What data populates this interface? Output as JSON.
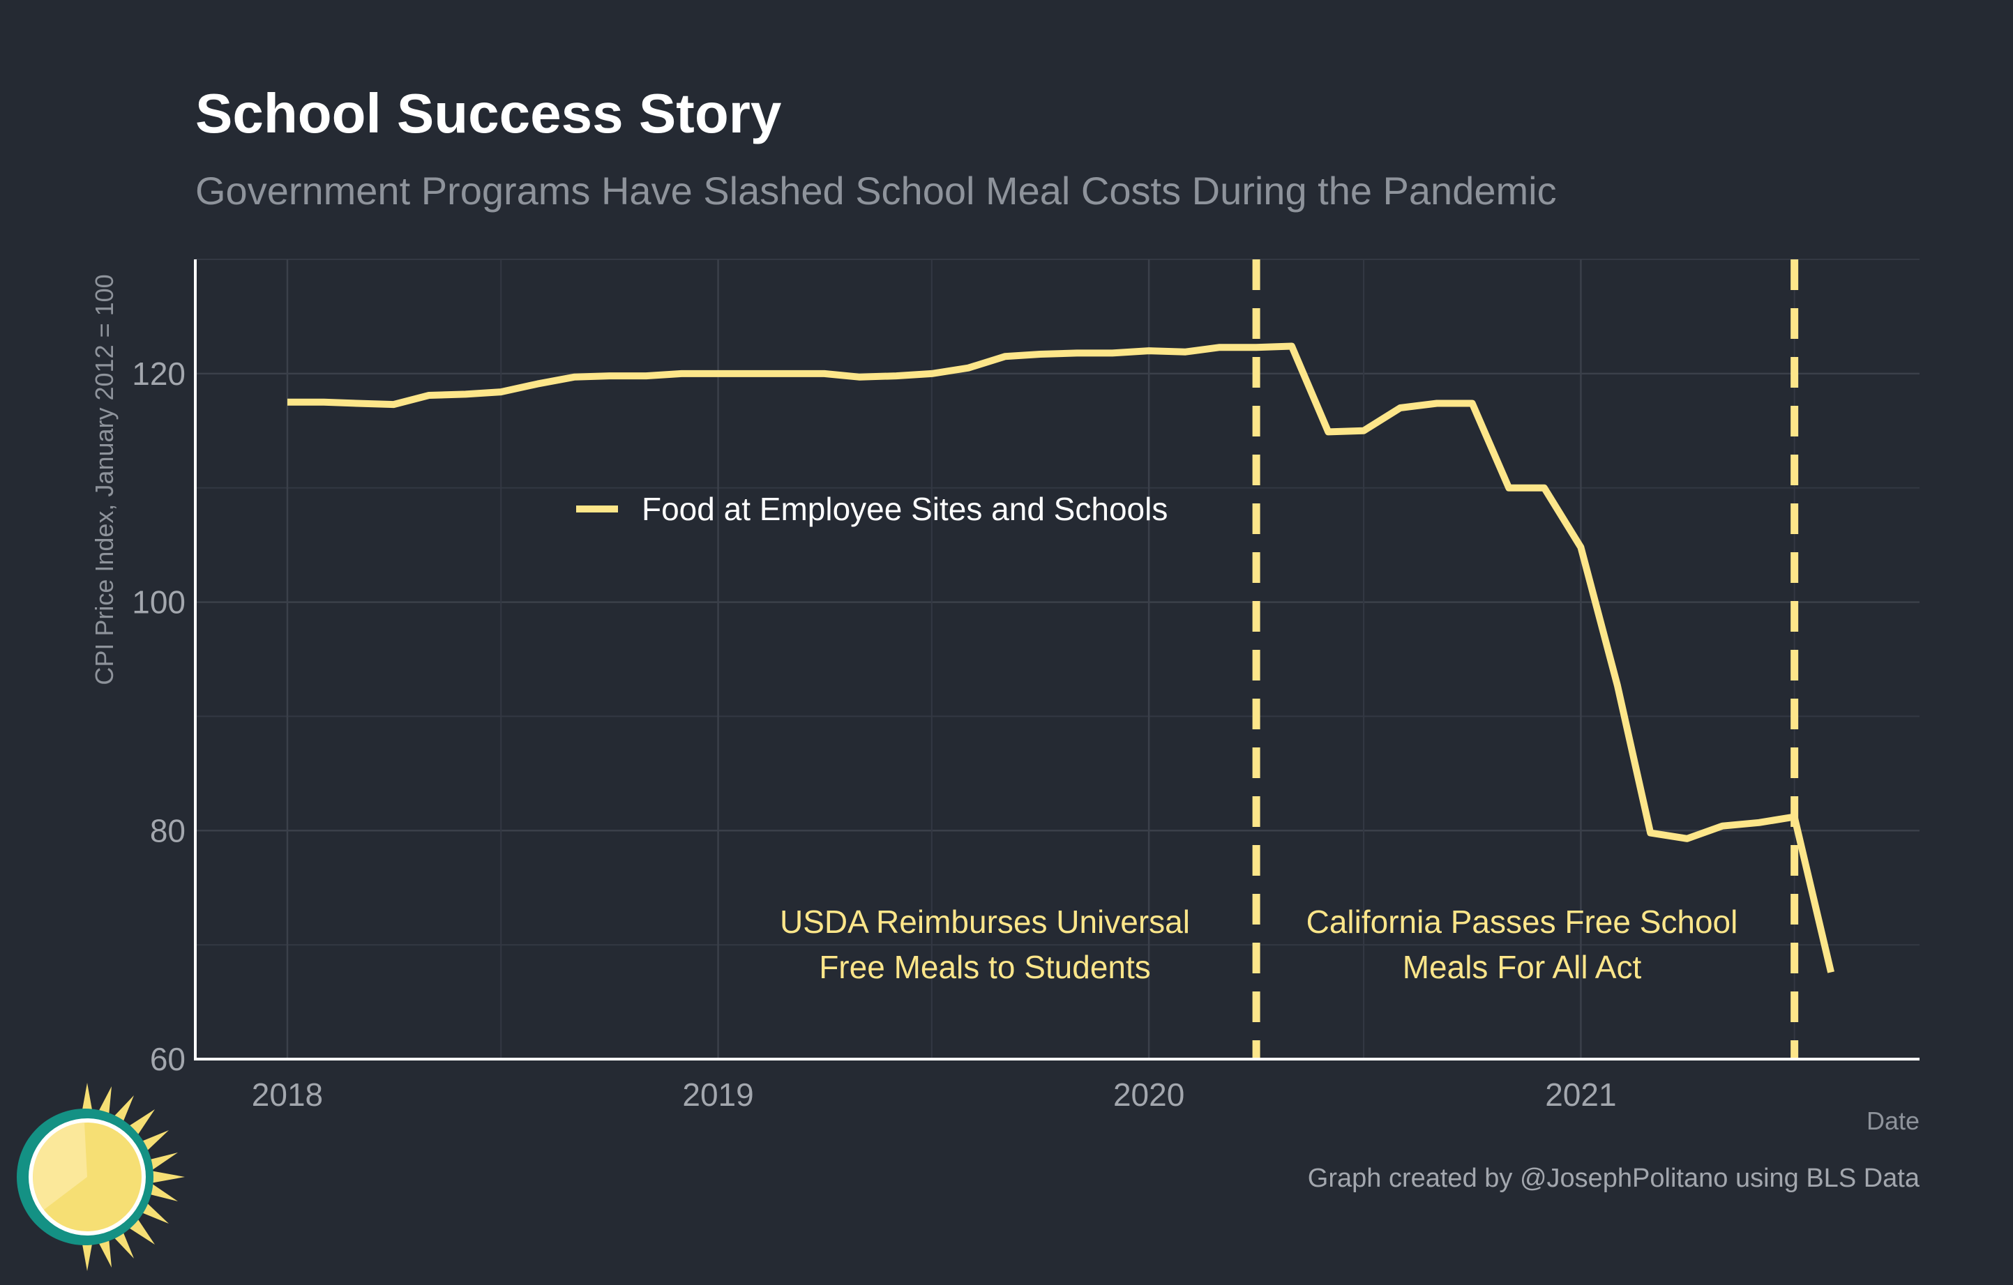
{
  "chart_data": {
    "type": "line",
    "title": "School Success Story",
    "subtitle": "Government Programs Have Slashed School Meal Costs During the Pandemic",
    "xlabel": "Date",
    "ylabel": "CPI Price Index, January 2012 = 100",
    "caption": "Graph created by @JosephPolitano using BLS Data",
    "xlim": [
      "2017-10-15",
      "2021-10-15"
    ],
    "ylim": [
      60,
      130
    ],
    "x_ticks": [
      "2018-01-01",
      "2019-01-01",
      "2020-01-01",
      "2021-01-01"
    ],
    "x_tick_labels": [
      "2018",
      "2019",
      "2020",
      "2021"
    ],
    "y_ticks": [
      60,
      80,
      100,
      120
    ],
    "y_tick_labels": [
      "60",
      "80",
      "100",
      "120"
    ],
    "grid": true,
    "legend_position": "inside-left",
    "series": [
      {
        "name": "Food at Employee Sites and Schools",
        "color": "#fde68a",
        "x": [
          "2018-01-01",
          "2018-02-01",
          "2018-03-01",
          "2018-04-01",
          "2018-05-01",
          "2018-06-01",
          "2018-07-01",
          "2018-08-01",
          "2018-09-01",
          "2018-10-01",
          "2018-11-01",
          "2018-12-01",
          "2019-01-01",
          "2019-02-01",
          "2019-03-01",
          "2019-04-01",
          "2019-05-01",
          "2019-06-01",
          "2019-07-01",
          "2019-08-01",
          "2019-09-01",
          "2019-10-01",
          "2019-11-01",
          "2019-12-01",
          "2020-01-01",
          "2020-02-01",
          "2020-03-01",
          "2020-04-01",
          "2020-05-01",
          "2020-06-01",
          "2020-07-01",
          "2020-08-01",
          "2020-09-01",
          "2020-10-01",
          "2020-11-01",
          "2020-12-01",
          "2021-01-01",
          "2021-02-01",
          "2021-03-01",
          "2021-04-01",
          "2021-05-01",
          "2021-06-01",
          "2021-07-01",
          "2021-08-01"
        ],
        "values": [
          117.5,
          117.5,
          117.4,
          117.3,
          118.1,
          118.2,
          118.4,
          119.1,
          119.7,
          119.8,
          119.8,
          120.0,
          120.0,
          120.0,
          120.0,
          120.0,
          119.7,
          119.8,
          120.0,
          120.5,
          121.5,
          121.7,
          121.8,
          121.8,
          122.0,
          121.9,
          122.3,
          122.3,
          122.4,
          114.9,
          115.0,
          117.0,
          117.4,
          117.4,
          110.0,
          110.0,
          104.8,
          92.7,
          79.8,
          79.3,
          80.4,
          80.7,
          81.2,
          67.6
        ]
      }
    ],
    "annotations": [
      {
        "label": "USDA Reimburses Universal\nFree Meals to Students",
        "x": "2020-04-01",
        "color": "#fde68a"
      },
      {
        "label": "California Passes Free School\nMeals For All Act",
        "x": "2021-07-01",
        "color": "#fde68a"
      }
    ]
  }
}
